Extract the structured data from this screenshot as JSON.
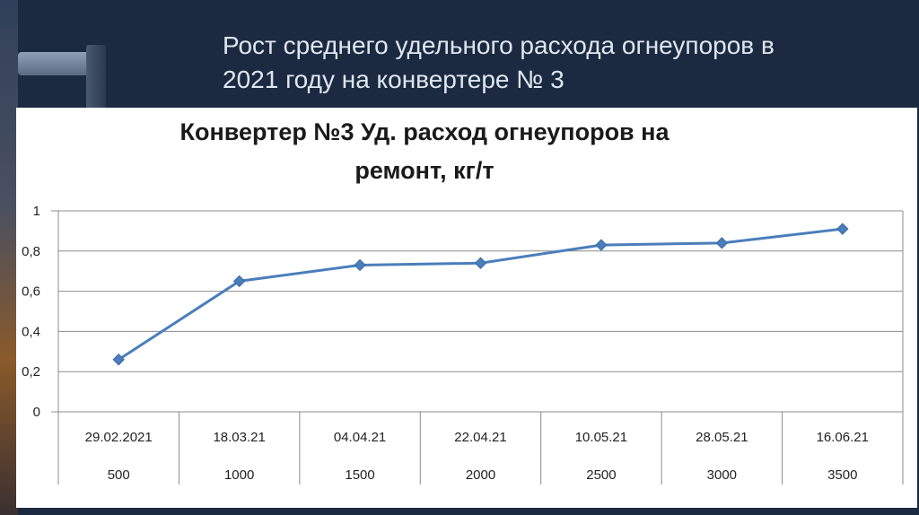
{
  "slide": {
    "title_line1": "Рост среднего удельного расхода огнеупоров в",
    "title_line2": "2021 году на конвертере № 3"
  },
  "chart_data": {
    "type": "line",
    "title_line1": "Конвертер №3 Уд. расход огнеупоров на",
    "title_line2": "ремонт, кг/т",
    "categories": [
      "29.02.2021",
      "18.03.21",
      "04.04.21",
      "22.04.21",
      "10.05.21",
      "28.05.21",
      "16.06.21"
    ],
    "categories_secondary": [
      "500",
      "1000",
      "1500",
      "2000",
      "2500",
      "3000",
      "3500"
    ],
    "y_ticks": [
      "0",
      "0,2",
      "0,4",
      "0,6",
      "0,8",
      "1"
    ],
    "ylim": [
      0,
      1
    ],
    "grid": true,
    "legend": "none",
    "series": [
      {
        "values": [
          0.26,
          0.65,
          0.73,
          0.74,
          0.83,
          0.84,
          0.91
        ],
        "color": "#4a7ebb",
        "marker": "diamond"
      }
    ]
  }
}
